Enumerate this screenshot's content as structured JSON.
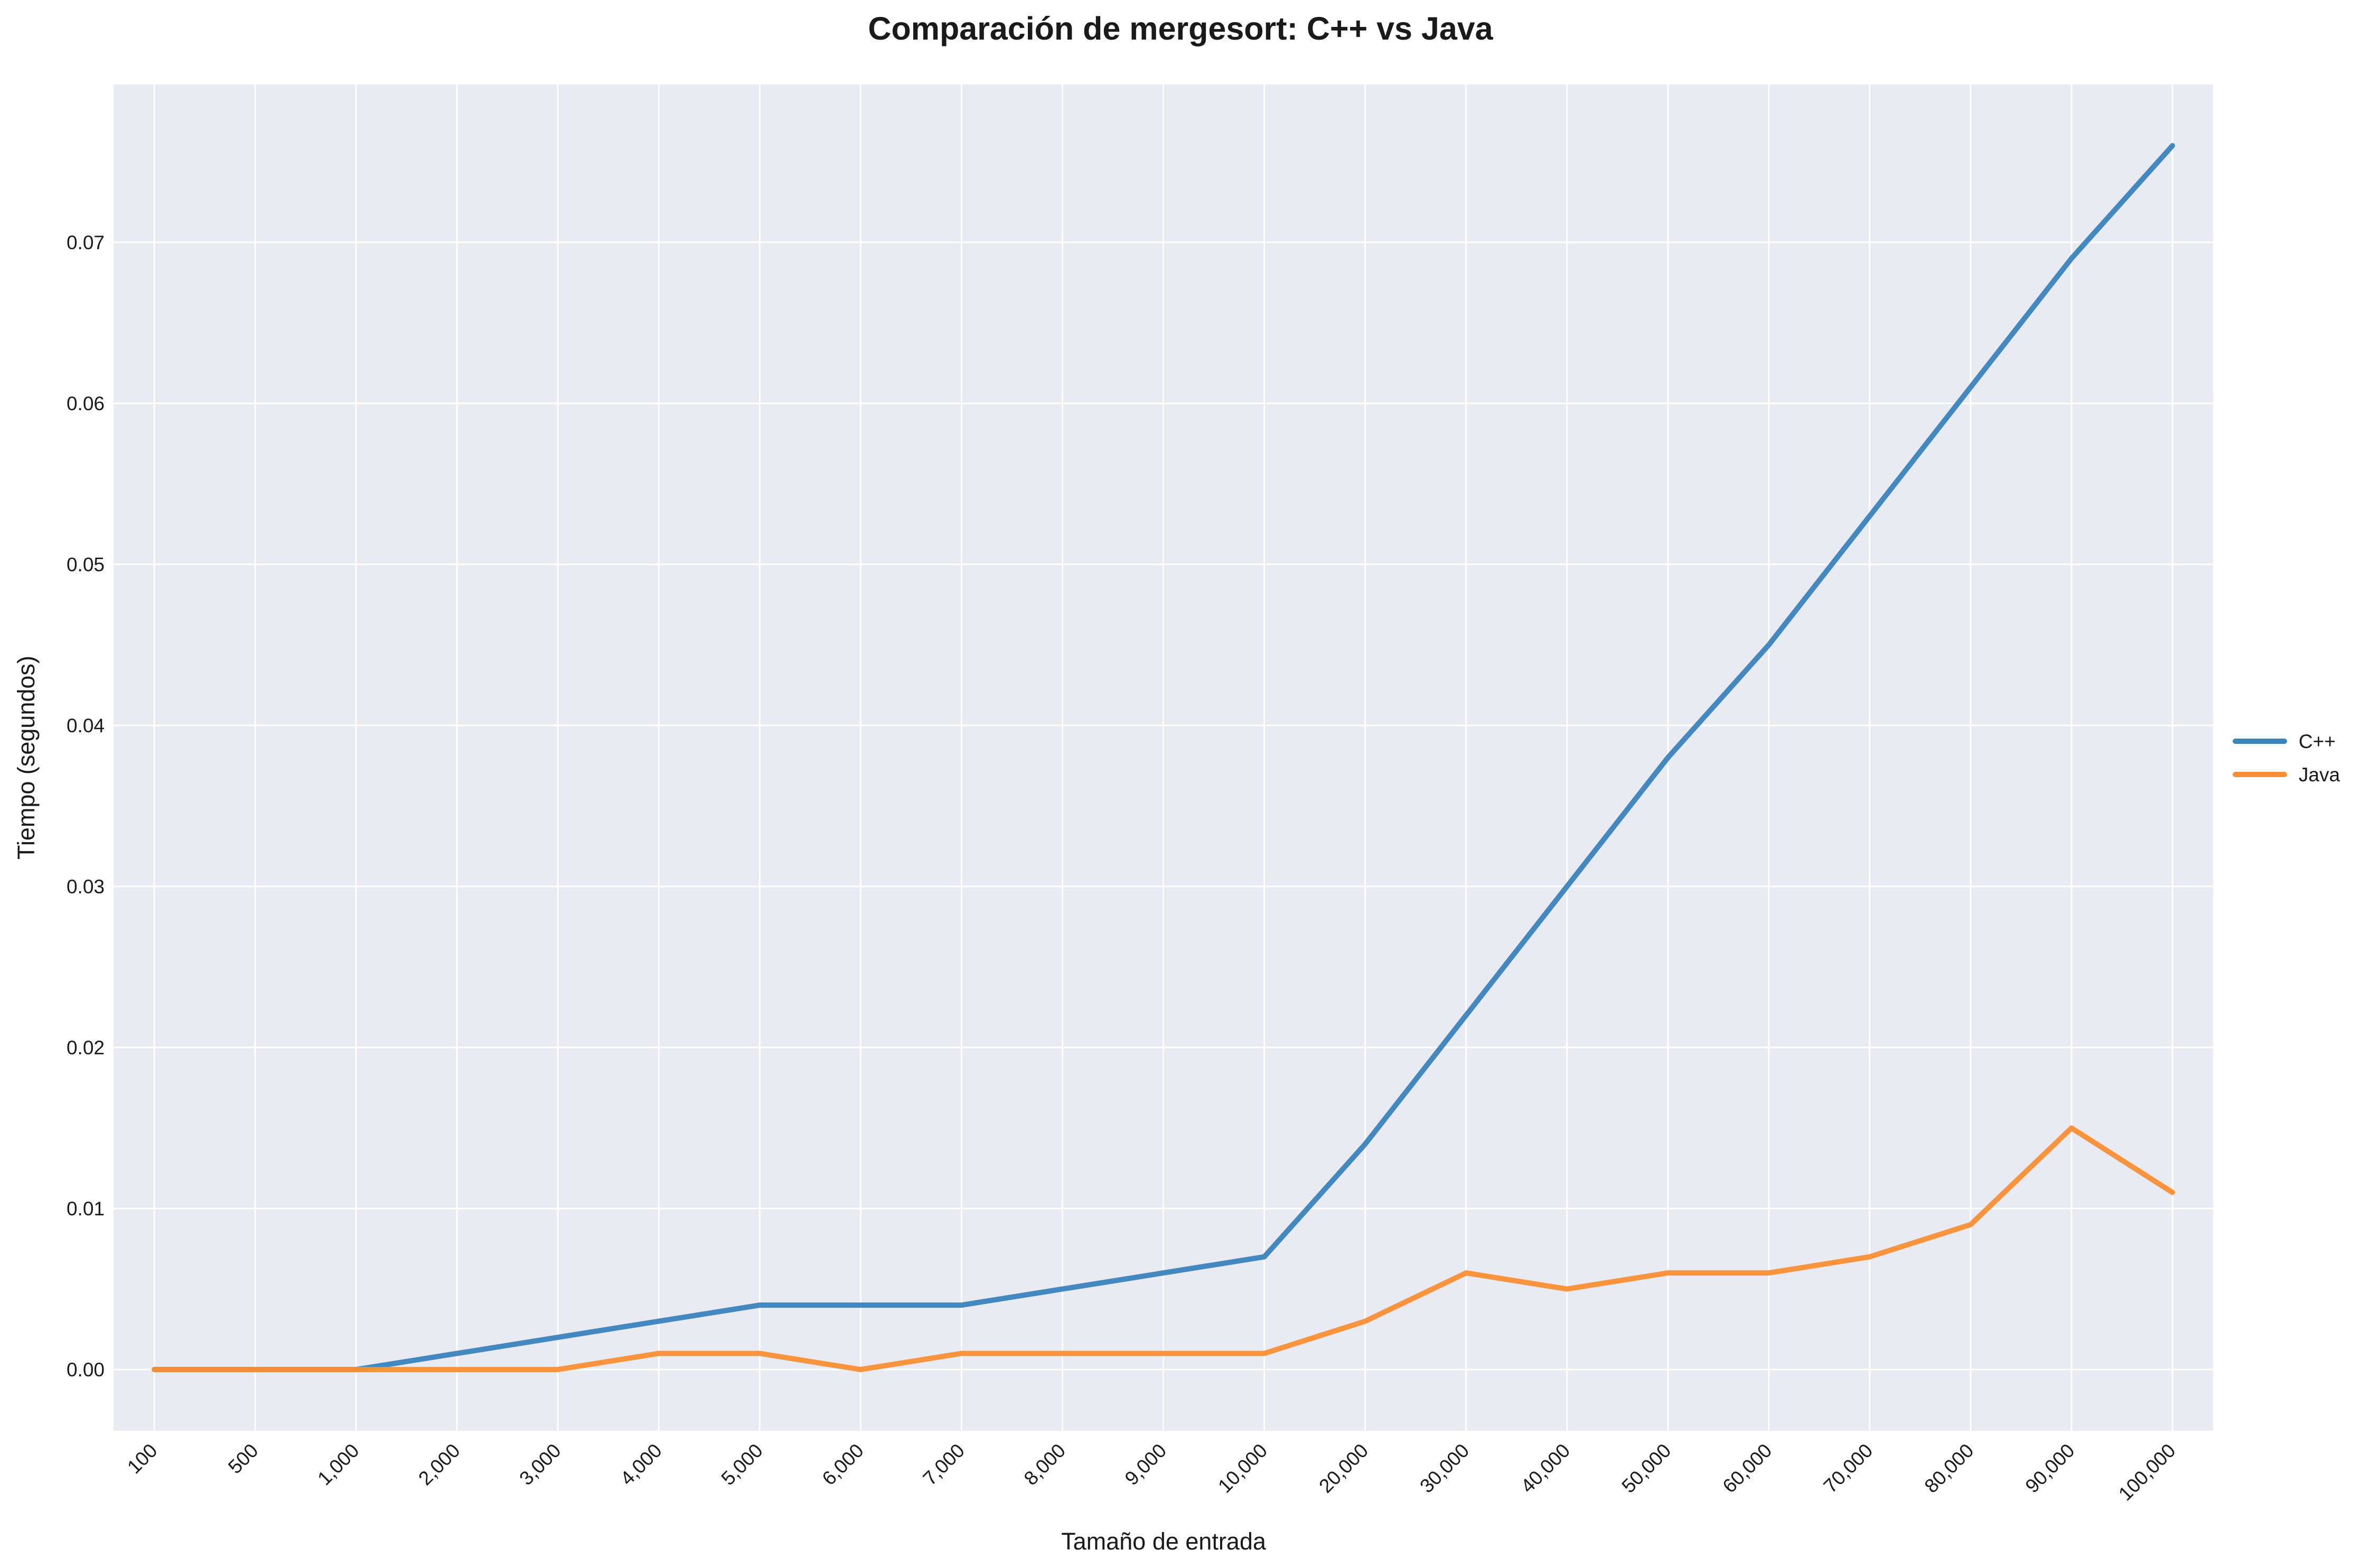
{
  "chart_data": {
    "type": "line",
    "title": "Comparación de mergesort: C++ vs Java",
    "xlabel": "Tamaño de entrada",
    "ylabel": "Tiempo (segundos)",
    "categories": [
      "100",
      "500",
      "1,000",
      "2,000",
      "3,000",
      "4,000",
      "5,000",
      "6,000",
      "7,000",
      "8,000",
      "9,000",
      "10,000",
      "20,000",
      "30,000",
      "40,000",
      "50,000",
      "60,000",
      "70,000",
      "80,000",
      "90,000",
      "100,000"
    ],
    "ylim": [
      -0.0038,
      0.0798
    ],
    "yticks": [
      "0.00",
      "0.01",
      "0.02",
      "0.03",
      "0.04",
      "0.05",
      "0.06",
      "0.07"
    ],
    "ytick_values": [
      0,
      0.01,
      0.02,
      0.03,
      0.04,
      0.05,
      0.06,
      0.07
    ],
    "grid": true,
    "legend_position": "right",
    "series": [
      {
        "name": "C++",
        "color": "#3a84bc",
        "values": [
          0,
          0,
          0,
          0.001,
          0.002,
          0.003,
          0.004,
          0.004,
          0.004,
          0.005,
          0.006,
          0.007,
          0.014,
          0.022,
          0.03,
          0.038,
          0.045,
          0.053,
          0.061,
          0.069,
          0.076
        ]
      },
      {
        "name": "Java",
        "color": "#f98f34",
        "values": [
          0,
          0,
          0,
          0,
          0,
          0.001,
          0.001,
          0,
          0.001,
          0.001,
          0.001,
          0.001,
          0.003,
          0.006,
          0.005,
          0.006,
          0.006,
          0.007,
          0.009,
          0.015,
          0.011
        ]
      }
    ]
  }
}
